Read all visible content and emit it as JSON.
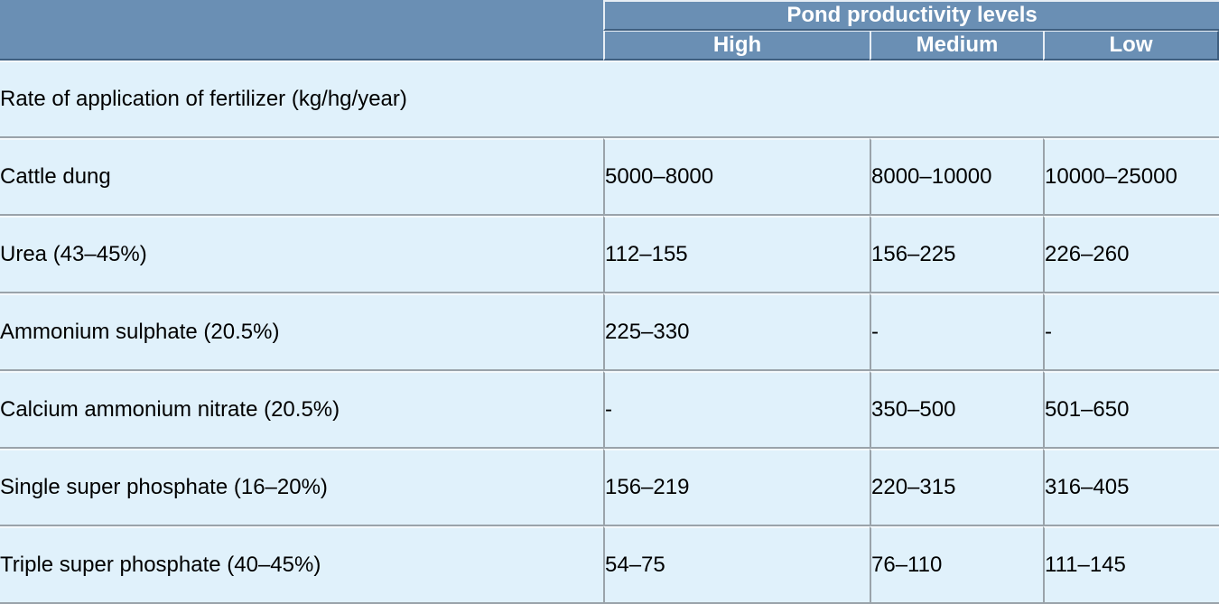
{
  "table": {
    "group_header": "Pond productivity levels",
    "columns": [
      "High",
      "Medium",
      "Low"
    ],
    "section_label": "Rate of application of fertilizer (kg/hg/year)",
    "rows": [
      {
        "label": "Cattle dung",
        "values": [
          "5000–8000",
          "8000–10000",
          "10000–25000"
        ]
      },
      {
        "label": "Urea (43–45%)",
        "values": [
          "112–155",
          "156–225",
          "226–260"
        ]
      },
      {
        "label": "Ammonium sulphate (20.5%)",
        "values": [
          "225–330",
          "-",
          "-"
        ]
      },
      {
        "label": "Calcium ammonium nitrate (20.5%)",
        "values": [
          "-",
          "350–500",
          "501–650"
        ]
      },
      {
        "label": "Single super phosphate (16–20%)",
        "values": [
          "156–219",
          "220–315",
          "316–405"
        ]
      },
      {
        "label": "Triple super phosphate (40–45%)",
        "values": [
          "54–75",
          "76–110",
          "111–145"
        ]
      }
    ]
  },
  "colors": {
    "header_bg": "#6a8fb4",
    "body_bg": "#e0f1fb",
    "header_text": "#ffffff"
  }
}
